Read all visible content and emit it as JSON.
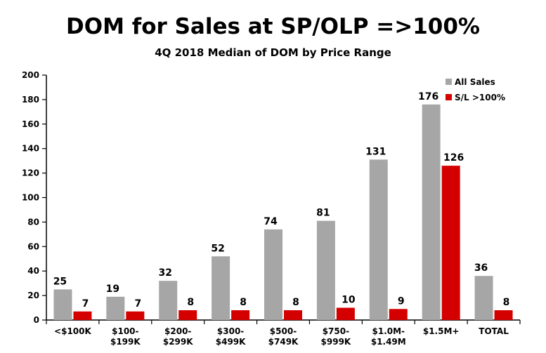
{
  "chart_data": {
    "type": "bar",
    "title": "DOM for Sales at SP/OLP =>100%",
    "subtitle": "4Q 2018 Median of DOM by Price Range",
    "categories": [
      [
        "<$100K"
      ],
      [
        "$100-",
        "$199K"
      ],
      [
        "$200-",
        "$299K"
      ],
      [
        "$300-",
        "$499K"
      ],
      [
        "$500-",
        "$749K"
      ],
      [
        "$750-",
        "$999K"
      ],
      [
        "$1.0M-",
        "$1.49M"
      ],
      [
        "$1.5M+"
      ],
      [
        "TOTAL"
      ]
    ],
    "series": [
      {
        "name": "All Sales",
        "color": "#a6a6a6",
        "values": [
          25,
          19,
          32,
          52,
          74,
          81,
          131,
          176,
          36
        ]
      },
      {
        "name": "S/L >100%",
        "color": "#d40000",
        "values": [
          7,
          7,
          8,
          8,
          8,
          10,
          9,
          126,
          8
        ]
      }
    ],
    "ylim": [
      0,
      200
    ],
    "yticks": [
      0,
      20,
      40,
      60,
      80,
      100,
      120,
      140,
      160,
      180,
      200
    ],
    "legend": "top-right",
    "grid": false
  }
}
